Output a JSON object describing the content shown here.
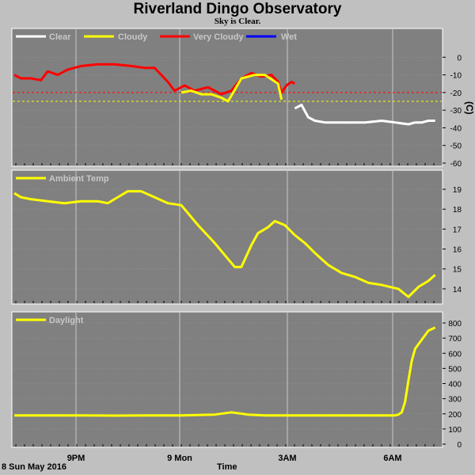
{
  "title": "Riverland Dingo Observatory",
  "subtitle": "Sky is Clear.",
  "date_label": "8 Sun May 2016",
  "x_axis_title": "Time",
  "colors": {
    "panel": "#808080",
    "frame": "#ffffff",
    "grid": "#c8c8c8",
    "clear": "#ffffff",
    "cloudy": "#ffff00",
    "very_cloudy": "#ff0000",
    "wet": "#0000ff",
    "threshold": "#ffff00"
  },
  "chart_data": [
    {
      "type": "line",
      "legend": [
        "Clear",
        "Cloudy",
        "Very Cloudy",
        "Wet"
      ],
      "ylabel": "(C)",
      "ylim": [
        -60,
        10
      ],
      "yticks": [
        0,
        -10,
        -20,
        -30,
        -40,
        -50,
        -60
      ],
      "xticks": [
        "9PM",
        "9 Mon",
        "3AM",
        "6AM"
      ],
      "thresholds": [
        -20,
        -25
      ],
      "series": [
        {
          "name": "Very Cloudy",
          "x": [
            19.0,
            19.2,
            19.5,
            19.8,
            20.0,
            20.3,
            20.6,
            21.0,
            21.5,
            22.0,
            22.5,
            22.9,
            23.2,
            23.4,
            23.6,
            23.8,
            24.1,
            24.4,
            24.8,
            25.2,
            25.5,
            25.8,
            26.1,
            26.4,
            26.7,
            26.9,
            27.0,
            27.15,
            27.3,
            27.4
          ],
          "y": [
            -10,
            -12,
            -12,
            -13,
            -8,
            -10,
            -7,
            -5,
            -4,
            -4,
            -5,
            -6,
            -6,
            -10,
            -14,
            -19,
            -16,
            -19,
            -17,
            -21,
            -19,
            -12,
            -9,
            -11,
            -10,
            -14,
            -20,
            -16,
            -14,
            -15
          ]
        },
        {
          "name": "Cloudy",
          "x": [
            24.0,
            24.3,
            24.6,
            24.9,
            25.2,
            25.4,
            25.8,
            26.2,
            26.5,
            26.9,
            27.0
          ],
          "y": [
            -20,
            -19,
            -21,
            -21,
            -23,
            -25,
            -12,
            -10,
            -10,
            -15,
            -24
          ]
        },
        {
          "name": "Clear",
          "x": [
            27.4,
            27.6,
            27.8,
            28.0,
            28.3,
            28.7,
            29.0,
            29.5,
            30.0,
            30.4,
            30.8,
            31.0,
            31.2,
            31.4,
            31.6
          ],
          "y": [
            -29,
            -27,
            -34,
            -36,
            -37,
            -37,
            -37,
            -37,
            -36,
            -37,
            -38,
            -37,
            -37,
            -36,
            -36
          ]
        }
      ]
    },
    {
      "type": "line",
      "legend": [
        "Ambient Temp"
      ],
      "ylim": [
        13.4,
        19.4
      ],
      "yticks": [
        19,
        18,
        17,
        16,
        15,
        14
      ],
      "xticks": [
        "9PM",
        "9 Mon",
        "3AM",
        "6AM"
      ],
      "series": [
        {
          "name": "Ambient Temp",
          "x": [
            19.0,
            19.2,
            19.5,
            20.0,
            20.5,
            21.0,
            21.5,
            21.8,
            22.1,
            22.4,
            22.8,
            23.2,
            23.6,
            24.0,
            24.5,
            25.0,
            25.3,
            25.6,
            25.8,
            26.1,
            26.3,
            26.4,
            26.6,
            26.8,
            27.1,
            27.4,
            27.7,
            28.0,
            28.4,
            28.8,
            29.2,
            29.6,
            30.0,
            30.5,
            30.8,
            31.1,
            31.4,
            31.6
          ],
          "y": [
            18.8,
            18.6,
            18.5,
            18.4,
            18.3,
            18.4,
            18.4,
            18.3,
            18.6,
            18.9,
            18.9,
            18.6,
            18.3,
            18.2,
            17.2,
            16.3,
            15.7,
            15.1,
            15.1,
            16.2,
            16.8,
            16.9,
            17.1,
            17.4,
            17.2,
            16.7,
            16.3,
            15.8,
            15.2,
            14.8,
            14.6,
            14.3,
            14.2,
            14.0,
            13.6,
            14.1,
            14.4,
            14.7
          ]
        }
      ]
    },
    {
      "type": "line",
      "legend": [
        "Daylight"
      ],
      "ylim": [
        0,
        800
      ],
      "yticks": [
        800,
        700,
        600,
        500,
        400,
        300,
        200,
        100,
        0
      ],
      "xticks": [
        "9PM",
        "9 Mon",
        "3AM",
        "6AM"
      ],
      "series": [
        {
          "name": "Daylight",
          "x": [
            19.0,
            20.0,
            21.0,
            22.0,
            23.0,
            24.0,
            25.0,
            25.5,
            26.0,
            26.5,
            27.0,
            28.0,
            29.0,
            29.5,
            30.0,
            30.4,
            30.5,
            30.6,
            30.7,
            30.8,
            30.9,
            31.0,
            31.2,
            31.4,
            31.6
          ],
          "y": [
            190,
            190,
            190,
            188,
            190,
            190,
            195,
            210,
            195,
            190,
            190,
            190,
            190,
            190,
            190,
            190,
            195,
            210,
            280,
            420,
            550,
            630,
            690,
            750,
            770
          ]
        }
      ]
    }
  ]
}
